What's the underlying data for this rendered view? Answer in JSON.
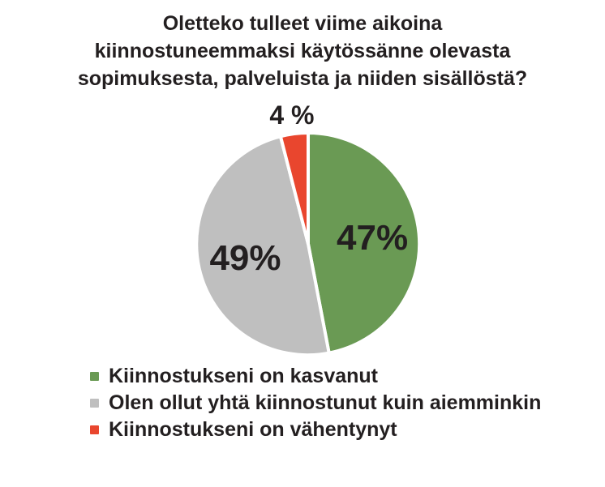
{
  "title": {
    "lines": [
      "Oletteko tulleet viime aikoina",
      "kiinnostuneemmaksi käytössänne olevasta",
      "sopimuksesta, palveluista ja niiden sisällöstä?"
    ]
  },
  "chart_data": {
    "type": "pie",
    "title": "Oletteko tulleet viime aikoina kiinnostuneemmaksi käytössänne olevasta sopimuksesta, palveluista ja niiden sisällöstä?",
    "start_angle_deg": 0,
    "direction": "clockwise",
    "legend_position": "bottom-left",
    "slice_separator_color": "#ffffff",
    "outer_ring_color": "#ffffff",
    "slices": [
      {
        "label": "Kiinnostukseni on kasvanut",
        "value": 47,
        "display": "47%",
        "color": "#6a9a54",
        "label_inside": true
      },
      {
        "label": "Olen ollut yhtä kiinnostunut kuin aiemminkin",
        "value": 49,
        "display": "49%",
        "color": "#bfbfbf",
        "label_inside": true
      },
      {
        "label": "Kiinnostukseni on vähentynyt",
        "value": 4,
        "display": "4 %",
        "color": "#e9462e",
        "label_inside": false
      }
    ]
  },
  "colors": {
    "text": "#231f20",
    "background": "#ffffff"
  }
}
